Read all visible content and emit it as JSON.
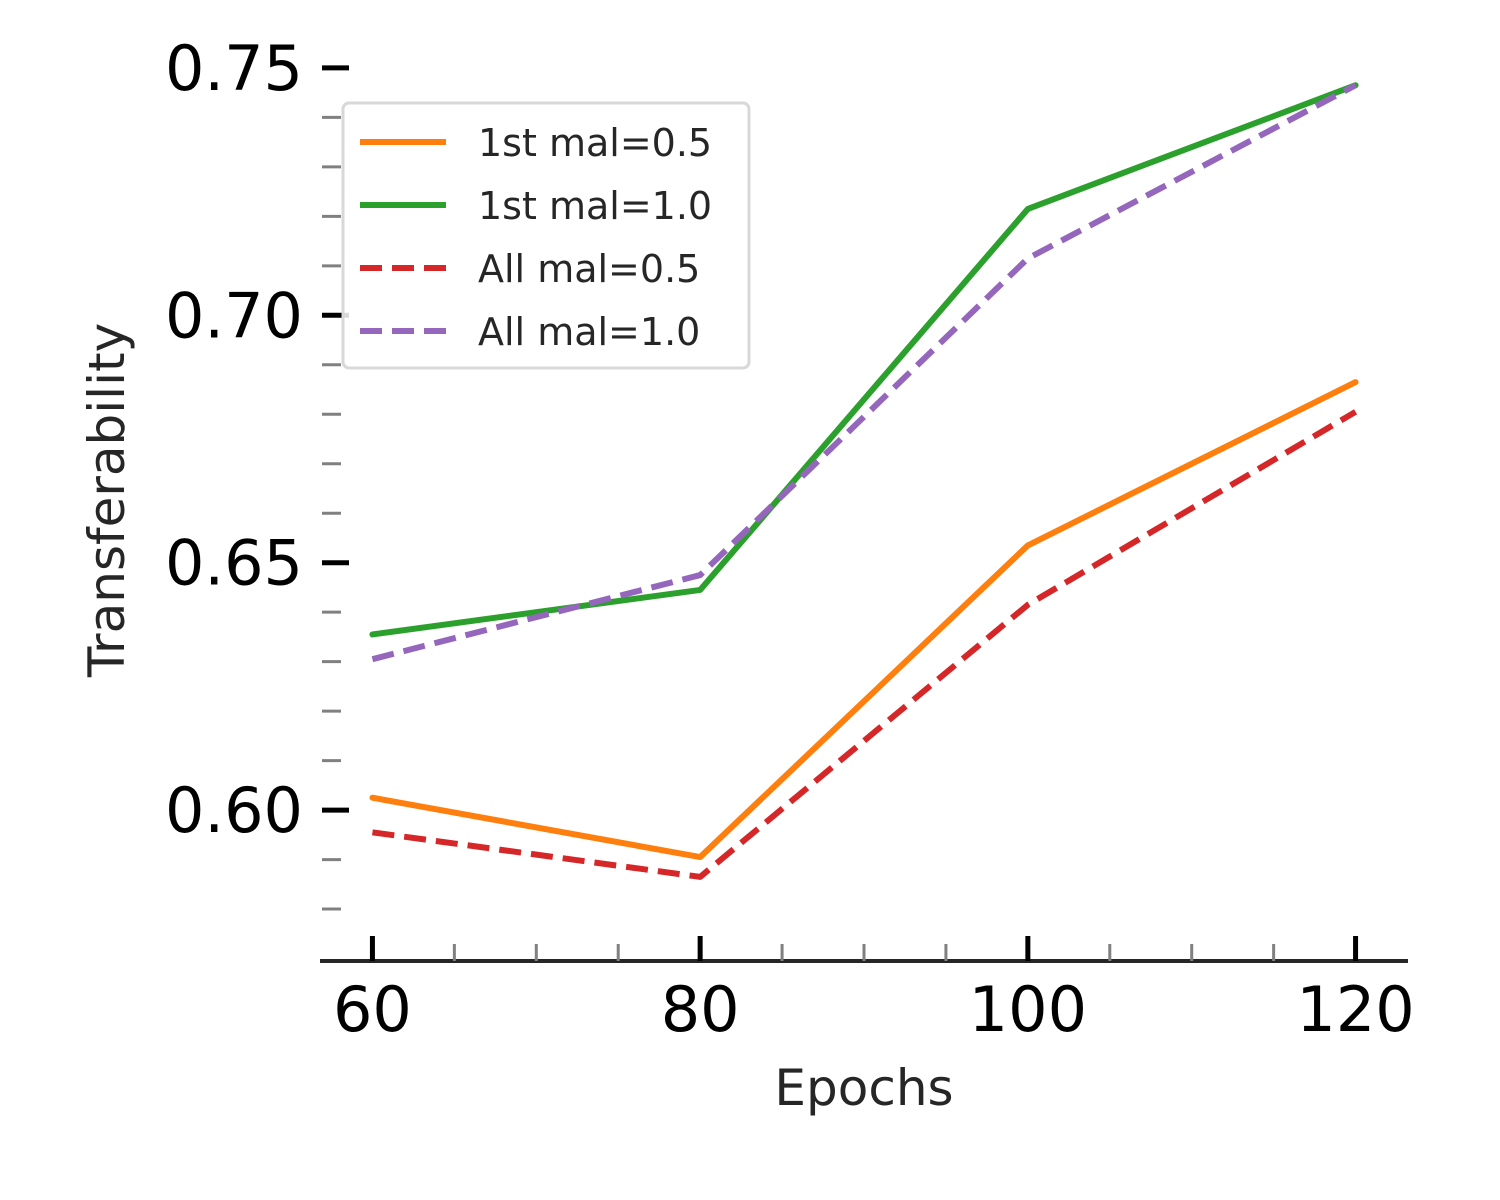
{
  "chart_data": {
    "type": "line",
    "title": "",
    "xlabel": "Epochs",
    "ylabel": "Transferability",
    "x": [
      60,
      80,
      100,
      120
    ],
    "xlim": [
      56.8,
      123.2
    ],
    "ylim": [
      0.5695,
      0.7516
    ],
    "xticks": [
      60,
      80,
      100,
      120
    ],
    "xtick_labels": [
      "60",
      "80",
      "100",
      "120"
    ],
    "xminor": [
      65,
      70,
      75,
      85,
      90,
      95,
      105,
      110,
      115
    ],
    "yticks": [
      0.6,
      0.65,
      0.7,
      0.75
    ],
    "ytick_labels": [
      "0.60",
      "0.65",
      "0.70",
      "0.75"
    ],
    "yminor": [
      0.58,
      0.59,
      0.61,
      0.62,
      0.63,
      0.64,
      0.66,
      0.67,
      0.68,
      0.69,
      0.71,
      0.72,
      0.73,
      0.74
    ],
    "grid": false,
    "legend_position": "top-left",
    "series": [
      {
        "name": "1st mal=0.5",
        "values": [
          0.6025,
          0.5905,
          0.6535,
          0.6865
        ],
        "color": "#ff7f0e",
        "dash": "solid"
      },
      {
        "name": "1st mal=1.0",
        "values": [
          0.6355,
          0.6445,
          0.7215,
          0.7465
        ],
        "color": "#2ca02c",
        "dash": "solid"
      },
      {
        "name": "All mal=0.5",
        "values": [
          0.5955,
          0.5865,
          0.6415,
          0.6805
        ],
        "color": "#d62728",
        "dash": "dashed"
      },
      {
        "name": "All mal=1.0",
        "values": [
          0.6305,
          0.6475,
          0.7115,
          0.7465
        ],
        "color": "#9467bd",
        "dash": "dashed"
      }
    ]
  }
}
